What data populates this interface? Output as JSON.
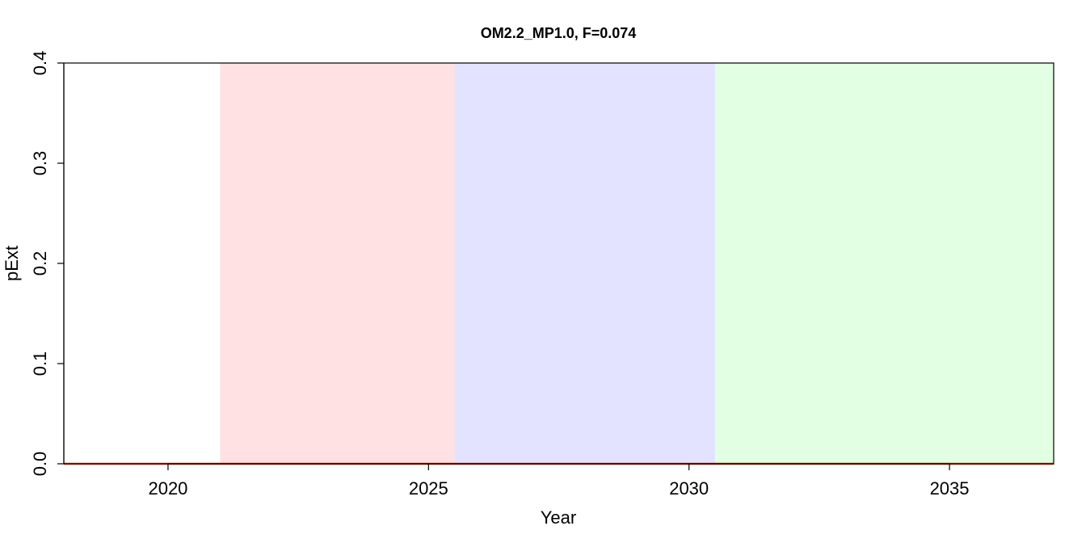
{
  "chart_data": {
    "type": "line",
    "title": "OM2.2_MP1.0, F=0.074",
    "xlabel": "Year",
    "ylabel": "pExt",
    "xlim": [
      2018,
      2037
    ],
    "ylim": [
      0,
      0.4
    ],
    "x_ticks": [
      2020,
      2025,
      2030,
      2035
    ],
    "y_ticks": [
      0.0,
      0.1,
      0.2,
      0.3,
      0.4
    ],
    "x_tick_labels": [
      "2020",
      "2025",
      "2030",
      "2035"
    ],
    "y_tick_labels": [
      "0.0",
      "0.1",
      "0.2",
      "0.3",
      "0.4"
    ],
    "grid": false,
    "legend": "none",
    "bands": [
      {
        "x_start": 2021,
        "x_end": 2025.5,
        "color": "#FFE1E4"
      },
      {
        "x_start": 2025.5,
        "x_end": 2030.5,
        "color": "#E3E3FF"
      },
      {
        "x_start": 2030.5,
        "x_end": 2037,
        "color": "#E3FFE3"
      }
    ],
    "series": [
      {
        "color": "#E8421E",
        "x": [
          2018,
          2019,
          2020,
          2021,
          2022,
          2023,
          2024,
          2025,
          2026,
          2027,
          2028,
          2029,
          2030,
          2031,
          2032,
          2033,
          2034,
          2035,
          2036,
          2037
        ],
        "y": [
          0,
          0,
          0,
          0,
          0,
          0,
          0,
          0,
          0,
          0,
          0,
          0,
          0,
          0,
          0,
          0,
          0,
          0,
          0,
          0
        ]
      }
    ]
  }
}
